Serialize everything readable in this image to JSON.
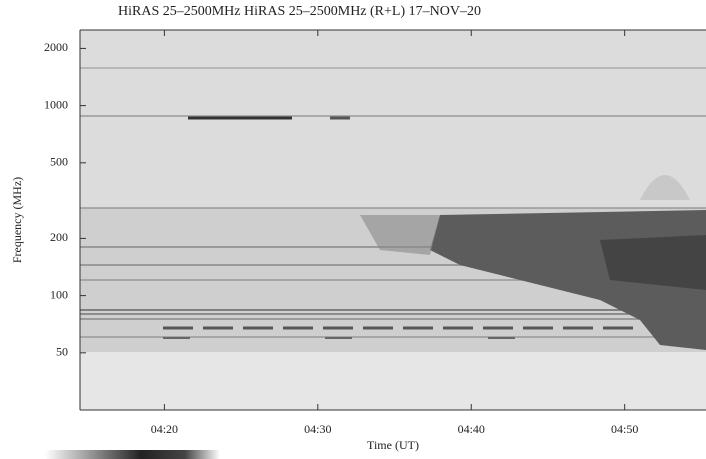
{
  "chart_data": {
    "type": "spectrogram",
    "title": "HiRAS  25–2500MHz HiRAS  25–2500MHz (R+L)  17–NOV–20",
    "xlabel": "Time (UT)",
    "ylabel": "Frequency (MHz)",
    "xlim": [
      14.5,
      55.3
    ],
    "xticks": [
      {
        "value": 20,
        "label": "04:20"
      },
      {
        "value": 30,
        "label": "04:30"
      },
      {
        "value": 40,
        "label": "04:40"
      },
      {
        "value": 50,
        "label": "04:50"
      }
    ],
    "ylim": [
      25,
      2500
    ],
    "yscale": "log",
    "yticks": [
      50,
      100,
      200,
      500,
      1000,
      2000
    ]
  }
}
